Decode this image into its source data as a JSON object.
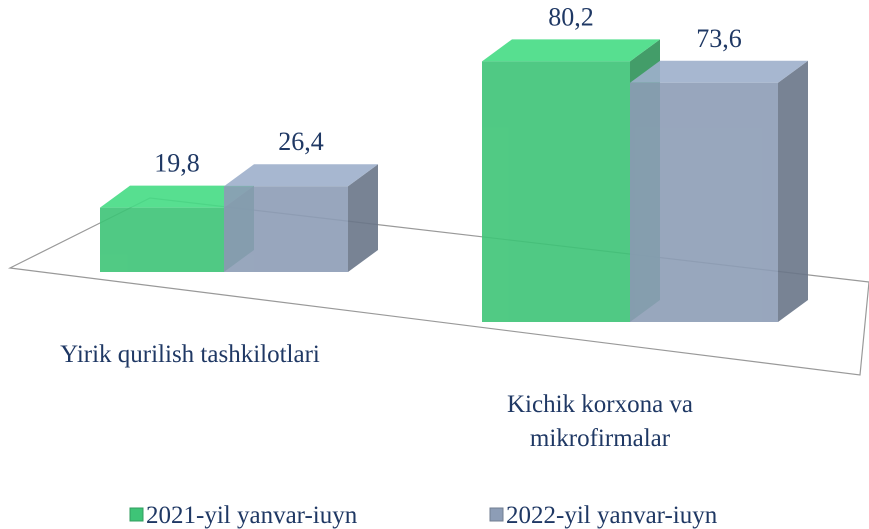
{
  "chart_data": {
    "type": "bar3d",
    "categories": [
      "Yirik qurilish tashkilotlari",
      "Kichik korxona va mikrofirmalar"
    ],
    "series": [
      {
        "name": "2021-yil yanvar-iuyn",
        "color": "#3ec477",
        "values": [
          19.8,
          80.2
        ],
        "value_labels": [
          "19,8",
          "80,2"
        ]
      },
      {
        "name": "2022-yil yanvar-iuyn",
        "color": "#8d9db6",
        "values": [
          26.4,
          73.6
        ],
        "value_labels": [
          "26,4",
          "73,6"
        ]
      }
    ],
    "legend": "bottom"
  }
}
